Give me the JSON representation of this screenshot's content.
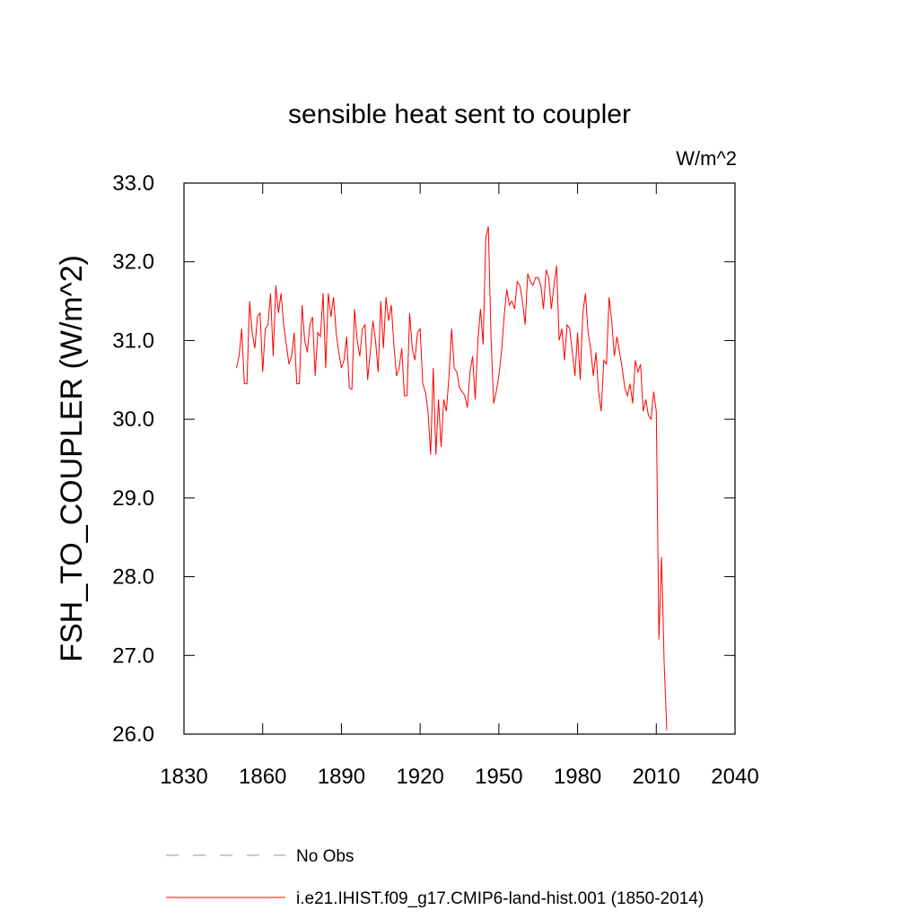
{
  "chart_data": {
    "type": "line",
    "title": "sensible heat sent to coupler",
    "units": "W/m^2",
    "y_label": "FSH_TO_COUPLER  (W/m^2)",
    "x": [
      1850,
      1851,
      1852,
      1853,
      1854,
      1855,
      1856,
      1857,
      1858,
      1859,
      1860,
      1861,
      1862,
      1863,
      1864,
      1865,
      1866,
      1867,
      1868,
      1869,
      1870,
      1871,
      1872,
      1873,
      1874,
      1875,
      1876,
      1877,
      1878,
      1879,
      1880,
      1881,
      1882,
      1883,
      1884,
      1885,
      1886,
      1887,
      1888,
      1889,
      1890,
      1891,
      1892,
      1893,
      1894,
      1895,
      1896,
      1897,
      1898,
      1899,
      1900,
      1901,
      1902,
      1903,
      1904,
      1905,
      1906,
      1907,
      1908,
      1909,
      1910,
      1911,
      1912,
      1913,
      1914,
      1915,
      1916,
      1917,
      1918,
      1919,
      1920,
      1921,
      1922,
      1923,
      1924,
      1925,
      1926,
      1927,
      1928,
      1929,
      1930,
      1931,
      1932,
      1933,
      1934,
      1935,
      1936,
      1937,
      1938,
      1939,
      1940,
      1941,
      1942,
      1943,
      1944,
      1945,
      1946,
      1947,
      1948,
      1949,
      1950,
      1951,
      1952,
      1953,
      1954,
      1955,
      1956,
      1957,
      1958,
      1959,
      1960,
      1961,
      1962,
      1963,
      1964,
      1965,
      1966,
      1967,
      1968,
      1969,
      1970,
      1971,
      1972,
      1973,
      1974,
      1975,
      1976,
      1977,
      1978,
      1979,
      1980,
      1981,
      1982,
      1983,
      1984,
      1985,
      1986,
      1987,
      1988,
      1989,
      1990,
      1991,
      1992,
      1993,
      1994,
      1995,
      1996,
      1997,
      1998,
      1999,
      2000,
      2001,
      2002,
      2003,
      2004,
      2005,
      2006,
      2007,
      2008,
      2009,
      2010,
      2011,
      2012,
      2013,
      2014
    ],
    "series": [
      {
        "name": "No Obs",
        "color": "#8c8cc8",
        "dash": true,
        "values": [
          null,
          null,
          null,
          null,
          null,
          null,
          null,
          null,
          null,
          null,
          null,
          null,
          null,
          null,
          null,
          null,
          null,
          null,
          null,
          null,
          null,
          null,
          null,
          null,
          null,
          null,
          null,
          null,
          null,
          null,
          null,
          null,
          null,
          null,
          null,
          null,
          null,
          null,
          null,
          null,
          null,
          null,
          null,
          null,
          null,
          null,
          null,
          null,
          null,
          null,
          null,
          null,
          null,
          null,
          null,
          null,
          null,
          null,
          null,
          null,
          null,
          null,
          null,
          null,
          null,
          null,
          null,
          null,
          null,
          null,
          null,
          null,
          null,
          null,
          null,
          null,
          null,
          null,
          null,
          null,
          null,
          null,
          null,
          null,
          null,
          null,
          null,
          null,
          null,
          null,
          null,
          null,
          null,
          null,
          null,
          null,
          null,
          null,
          null,
          null,
          null,
          null,
          null,
          null,
          null,
          null,
          null,
          null,
          null,
          null,
          null,
          null,
          null,
          null,
          null,
          null,
          null,
          null,
          null,
          null,
          null,
          null,
          null,
          null,
          null,
          null,
          null,
          null,
          null,
          null,
          null,
          null,
          null,
          null,
          null,
          null,
          null,
          null,
          null,
          null,
          null,
          null,
          null,
          null,
          null,
          null,
          null,
          null,
          null,
          null,
          null,
          null,
          null,
          null,
          null,
          null,
          null,
          null,
          null,
          null,
          null,
          null,
          null,
          null,
          null
        ]
      },
      {
        "name": "i.e21.IHIST.f09_g17.CMIP6-land-hist.001 (1850-2014)",
        "color": "#ff0000",
        "dash": false,
        "values": [
          30.65,
          30.8,
          31.15,
          30.45,
          30.45,
          31.5,
          31.1,
          30.9,
          31.3,
          31.35,
          30.6,
          31.15,
          31.2,
          31.6,
          30.8,
          31.7,
          31.35,
          31.6,
          31.2,
          30.95,
          30.7,
          30.8,
          31.1,
          30.45,
          30.45,
          31.45,
          31.0,
          30.85,
          31.2,
          31.3,
          30.55,
          31.1,
          31.05,
          31.6,
          30.65,
          31.6,
          31.3,
          31.55,
          31.1,
          30.85,
          30.65,
          30.75,
          31.05,
          30.4,
          30.38,
          31.4,
          31.0,
          30.8,
          31.15,
          31.2,
          30.5,
          30.85,
          31.25,
          31.0,
          30.6,
          31.5,
          30.9,
          31.55,
          31.25,
          31.45,
          30.95,
          30.55,
          30.65,
          30.9,
          30.3,
          30.3,
          31.35,
          30.9,
          30.75,
          31.1,
          31.15,
          30.45,
          30.35,
          30.1,
          29.55,
          30.65,
          29.55,
          30.25,
          29.65,
          30.25,
          30.1,
          30.55,
          31.15,
          30.65,
          30.6,
          30.4,
          30.35,
          30.3,
          30.15,
          30.6,
          30.8,
          30.25,
          31.0,
          31.4,
          30.95,
          32.3,
          32.45,
          31.05,
          30.2,
          30.35,
          30.55,
          30.85,
          31.3,
          31.65,
          31.45,
          31.5,
          31.4,
          31.75,
          31.7,
          31.5,
          31.2,
          31.85,
          31.75,
          31.7,
          31.8,
          31.8,
          31.7,
          31.4,
          31.9,
          31.8,
          31.4,
          31.7,
          31.95,
          31.0,
          31.15,
          30.75,
          31.2,
          31.15,
          30.85,
          30.55,
          31.1,
          30.5,
          31.35,
          31.6,
          31.1,
          30.9,
          30.55,
          30.85,
          30.35,
          30.1,
          30.75,
          30.7,
          31.55,
          31.25,
          30.8,
          31.05,
          30.85,
          30.65,
          30.4,
          30.3,
          30.45,
          30.2,
          30.75,
          30.6,
          30.7,
          30.1,
          30.25,
          30.05,
          30.0,
          30.35,
          30.1,
          27.2,
          28.25,
          26.9,
          26.05
        ]
      }
    ],
    "xlim": [
      1830,
      2040
    ],
    "xticks": [
      1830,
      1860,
      1890,
      1920,
      1950,
      1980,
      2010,
      2040
    ],
    "ylim": [
      26,
      33
    ],
    "yticks": [
      {
        "value": 26,
        "label": "26.0"
      },
      {
        "value": 27,
        "label": "27.0"
      },
      {
        "value": 28,
        "label": "28.0"
      },
      {
        "value": 29,
        "label": "29.0"
      },
      {
        "value": 30,
        "label": "30.0"
      },
      {
        "value": 31,
        "label": "31.0"
      },
      {
        "value": 32,
        "label": "32.0"
      },
      {
        "value": 33,
        "label": "33.0"
      }
    ],
    "grid": false
  }
}
